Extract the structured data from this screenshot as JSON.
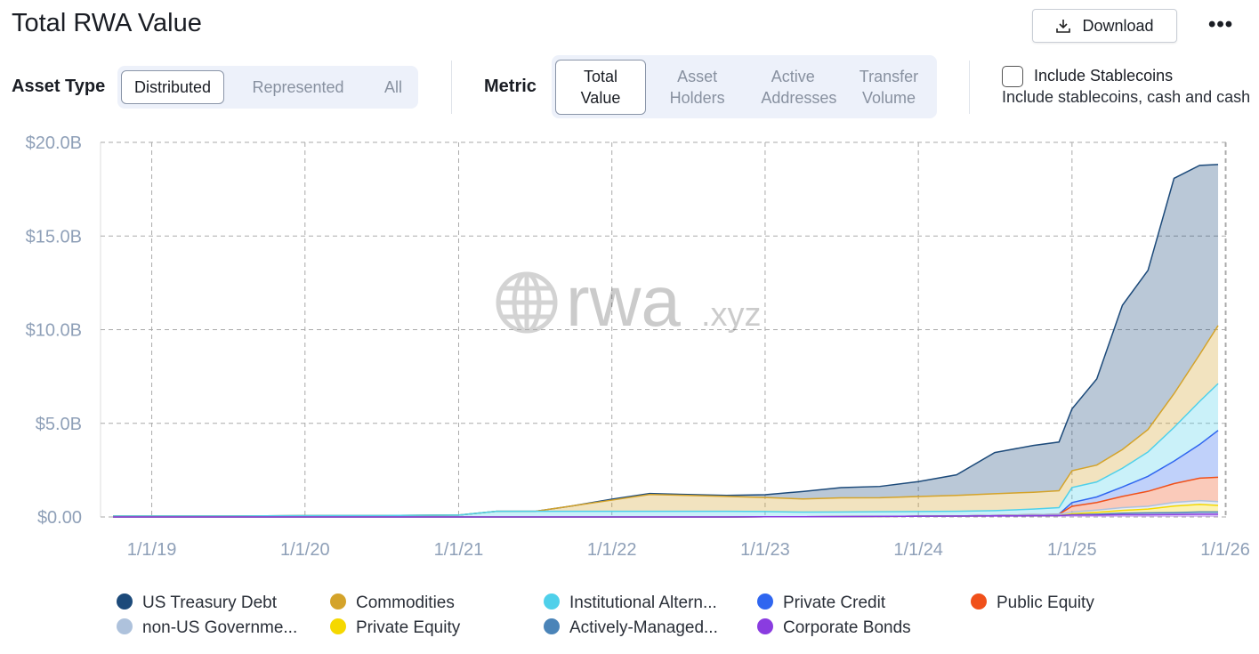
{
  "header": {
    "title": "Total RWA Value",
    "download": "Download"
  },
  "filters": {
    "asset_type": {
      "label": "Asset Type",
      "options": [
        "Distributed",
        "Represented",
        "All"
      ],
      "selected": 0
    },
    "metric": {
      "label": "Metric",
      "options": [
        "Total Value",
        "Asset Holders",
        "Active Addresses",
        "Transfer Volume"
      ],
      "selected": 0
    },
    "stablecoins": {
      "label": "Include Stablecoins",
      "description": "Include stablecoins, cash and cash",
      "checked": false
    }
  },
  "chart_data": {
    "type": "stacked-area",
    "watermark": {
      "main": "rwa",
      "suffix": ".xyz"
    },
    "x": [
      "10/1/18",
      "1/1/19",
      "7/1/19",
      "1/1/20",
      "7/1/20",
      "1/1/21",
      "4/1/21",
      "7/1/21",
      "10/1/21",
      "1/1/22",
      "4/1/22",
      "7/1/22",
      "10/1/22",
      "1/1/23",
      "4/1/23",
      "7/1/23",
      "10/1/23",
      "1/1/24",
      "4/1/24",
      "7/1/24",
      "10/1/24",
      "12/1/24",
      "1/1/25",
      "3/1/25",
      "5/1/25",
      "7/1/25",
      "9/1/25",
      "11/1/25",
      "12/15/25"
    ],
    "xlim": [
      "9/1/18",
      "1/3/26"
    ],
    "xticks": [
      "1/1/19",
      "1/1/20",
      "1/1/21",
      "1/1/22",
      "1/1/23",
      "1/1/24",
      "1/1/25",
      "1/1/26"
    ],
    "ylim": [
      0,
      20
    ],
    "yticks": [
      {
        "value": 0,
        "label": "$0.00"
      },
      {
        "value": 5,
        "label": "$5.0B"
      },
      {
        "value": 10,
        "label": "$10.0B"
      },
      {
        "value": 15,
        "label": "$15.0B"
      },
      {
        "value": 20,
        "label": "$20.0B"
      }
    ],
    "grid": true,
    "series": [
      {
        "name": "US Treasury Debt",
        "color": "#1c4a7a",
        "values": [
          0,
          0,
          0,
          0,
          0,
          0,
          0,
          0,
          0,
          0.05,
          0.05,
          0.05,
          0.05,
          0.15,
          0.4,
          0.55,
          0.6,
          0.8,
          1.1,
          2.2,
          2.5,
          2.6,
          3.3,
          4.6,
          7.7,
          8.5,
          11.5,
          10.1,
          8.6
        ]
      },
      {
        "name": "Commodities",
        "color": "#d4a32a",
        "values": [
          0,
          0,
          0,
          0,
          0,
          0,
          0,
          0,
          0.3,
          0.6,
          0.9,
          0.85,
          0.8,
          0.75,
          0.7,
          0.75,
          0.75,
          0.8,
          0.85,
          0.9,
          0.9,
          0.9,
          0.9,
          0.9,
          1.0,
          1.2,
          1.8,
          2.5,
          3.1
        ]
      },
      {
        "name": "Institutional Altern...",
        "color": "#4fd0ea",
        "values": [
          0.05,
          0.05,
          0.05,
          0.07,
          0.08,
          0.1,
          0.3,
          0.3,
          0.3,
          0.3,
          0.3,
          0.3,
          0.3,
          0.28,
          0.25,
          0.25,
          0.25,
          0.25,
          0.25,
          0.25,
          0.3,
          0.35,
          0.8,
          0.8,
          1.0,
          1.3,
          1.8,
          2.3,
          2.5
        ]
      },
      {
        "name": "Private Credit",
        "color": "#2f66f0",
        "values": [
          0,
          0,
          0,
          0,
          0,
          0,
          0,
          0,
          0,
          0,
          0,
          0,
          0,
          0,
          0,
          0,
          0,
          0,
          0,
          0,
          0,
          0,
          0.2,
          0.3,
          0.5,
          0.8,
          1.2,
          1.8,
          2.5
        ]
      },
      {
        "name": "Public Equity",
        "color": "#f0501a",
        "values": [
          0,
          0,
          0,
          0,
          0,
          0,
          0,
          0,
          0,
          0,
          0,
          0,
          0,
          0,
          0,
          0,
          0,
          0,
          0,
          0,
          0,
          0,
          0.3,
          0.4,
          0.6,
          0.8,
          1.0,
          1.2,
          1.3
        ]
      },
      {
        "name": "non-US Governme...",
        "color": "#aec2dc",
        "values": [
          0,
          0,
          0,
          0,
          0,
          0,
          0,
          0,
          0,
          0,
          0,
          0,
          0,
          0,
          0,
          0,
          0,
          0,
          0,
          0.03,
          0.05,
          0.07,
          0.1,
          0.12,
          0.15,
          0.15,
          0.2,
          0.2,
          0.2
        ]
      },
      {
        "name": "Private Equity",
        "color": "#f5d800",
        "values": [
          0,
          0,
          0,
          0,
          0,
          0,
          0,
          0,
          0,
          0,
          0,
          0,
          0,
          0,
          0,
          0,
          0,
          0,
          0,
          0,
          0,
          0,
          0.05,
          0.1,
          0.15,
          0.2,
          0.35,
          0.4,
          0.35
        ]
      },
      {
        "name": "Actively-Managed...",
        "color": "#4a84b8",
        "values": [
          0,
          0,
          0,
          0,
          0,
          0,
          0,
          0,
          0,
          0,
          0,
          0,
          0,
          0,
          0,
          0,
          0,
          0,
          0,
          0,
          0,
          0,
          0.02,
          0.05,
          0.08,
          0.1,
          0.1,
          0.12,
          0.12
        ]
      },
      {
        "name": "Corporate Bonds",
        "color": "#8a3ce0",
        "values": [
          0,
          0,
          0,
          0,
          0,
          0,
          0,
          0,
          0,
          0,
          0,
          0,
          0,
          0.01,
          0.01,
          0.02,
          0.03,
          0.04,
          0.05,
          0.06,
          0.07,
          0.08,
          0.1,
          0.1,
          0.12,
          0.12,
          0.13,
          0.15,
          0.15
        ]
      }
    ]
  }
}
